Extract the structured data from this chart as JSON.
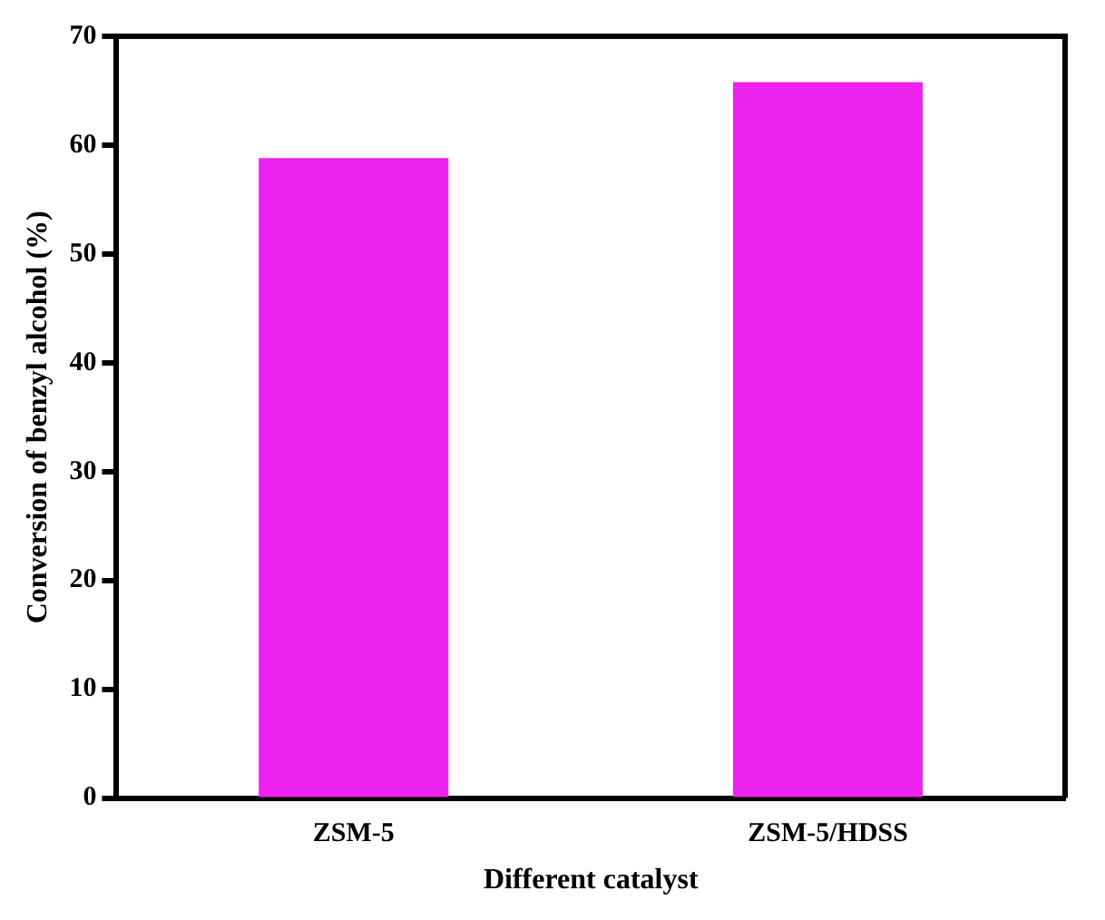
{
  "chart_data": {
    "type": "bar",
    "xlabel": "Different catalyst",
    "ylabel": "Conversion of benzyl alcohol (%)",
    "categories": [
      "ZSM-5",
      "ZSM-5/HDSS"
    ],
    "values": [
      58.8,
      65.8
    ],
    "color": "#ee22ee",
    "ylim": [
      0,
      70
    ],
    "yticks": [
      0,
      10,
      20,
      30,
      40,
      50,
      60,
      70
    ],
    "grid": false,
    "legend": false
  }
}
